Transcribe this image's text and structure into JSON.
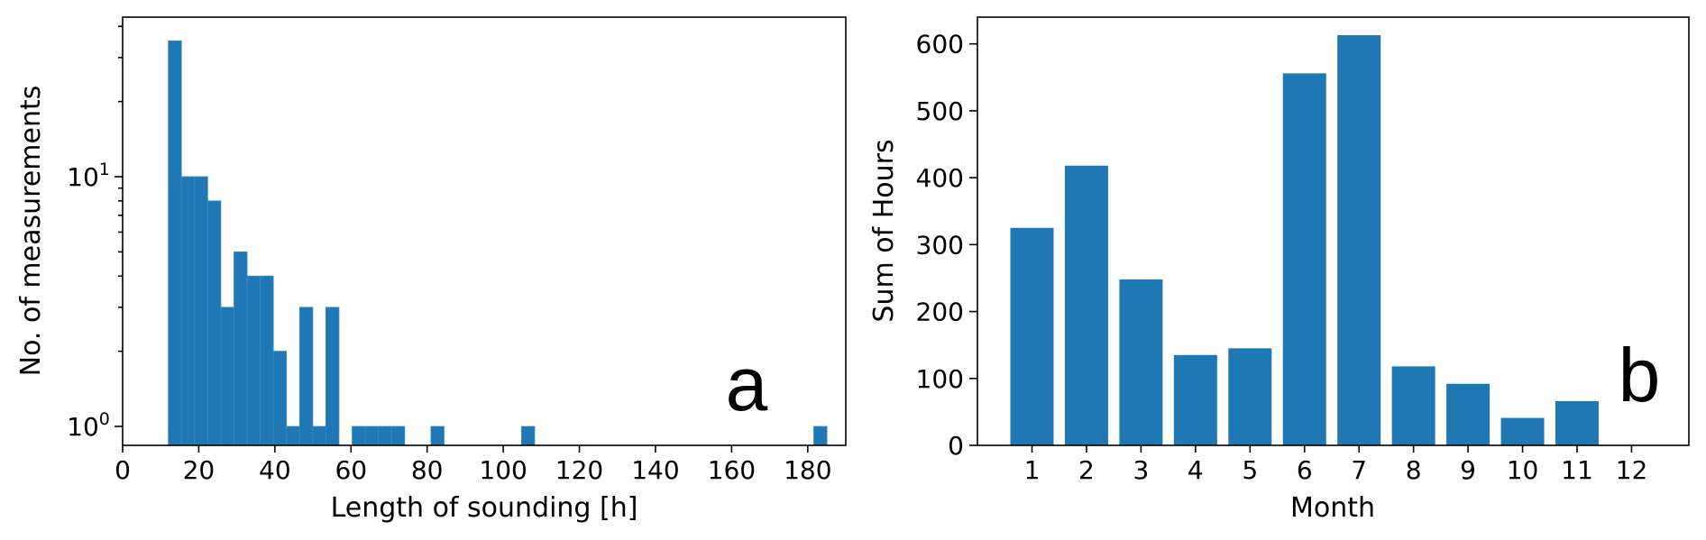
{
  "chart_data": [
    {
      "type": "bar",
      "panel_label": "a",
      "xlabel": "Length of sounding [h]",
      "ylabel": "No. of measurements",
      "yscale": "log",
      "xlim": [
        0,
        190
      ],
      "xticks": [
        "0",
        "20",
        "40",
        "60",
        "80",
        "100",
        "120",
        "140",
        "160",
        "180"
      ],
      "xtick_values": [
        0,
        20,
        40,
        60,
        80,
        100,
        120,
        140,
        160,
        180
      ],
      "yticks": [
        {
          "value": 1,
          "base": "10",
          "exp": "0"
        },
        {
          "value": 10,
          "base": "10",
          "exp": "1"
        }
      ],
      "bin_width": 3.45,
      "bins": [
        {
          "x": 12.0,
          "value": 35
        },
        {
          "x": 15.45,
          "value": 10
        },
        {
          "x": 18.9,
          "value": 10
        },
        {
          "x": 22.35,
          "value": 8
        },
        {
          "x": 25.8,
          "value": 3
        },
        {
          "x": 29.25,
          "value": 5
        },
        {
          "x": 32.7,
          "value": 4
        },
        {
          "x": 36.15,
          "value": 4
        },
        {
          "x": 39.6,
          "value": 2
        },
        {
          "x": 43.05,
          "value": 1
        },
        {
          "x": 46.5,
          "value": 3
        },
        {
          "x": 49.95,
          "value": 1
        },
        {
          "x": 53.4,
          "value": 3
        },
        {
          "x": 60.3,
          "value": 1
        },
        {
          "x": 63.75,
          "value": 1
        },
        {
          "x": 67.2,
          "value": 1
        },
        {
          "x": 70.65,
          "value": 1
        },
        {
          "x": 81.0,
          "value": 1
        },
        {
          "x": 104.8,
          "value": 1
        },
        {
          "x": 181.6,
          "value": 1
        }
      ],
      "color": "#1f77b4",
      "grid": false
    },
    {
      "type": "bar",
      "panel_label": "b",
      "xlabel": "Month",
      "ylabel": "Sum of Hours",
      "categories": [
        "1",
        "2",
        "3",
        "4",
        "5",
        "6",
        "7",
        "8",
        "9",
        "10",
        "11",
        "12"
      ],
      "values": [
        325,
        418,
        248,
        135,
        145,
        556,
        613,
        118,
        92,
        41,
        66,
        0
      ],
      "ylim": [
        0,
        640
      ],
      "yticks": [
        "0",
        "100",
        "200",
        "300",
        "400",
        "500",
        "600"
      ],
      "ytick_values": [
        0,
        100,
        200,
        300,
        400,
        500,
        600
      ],
      "color": "#1f77b4",
      "grid": false
    }
  ]
}
